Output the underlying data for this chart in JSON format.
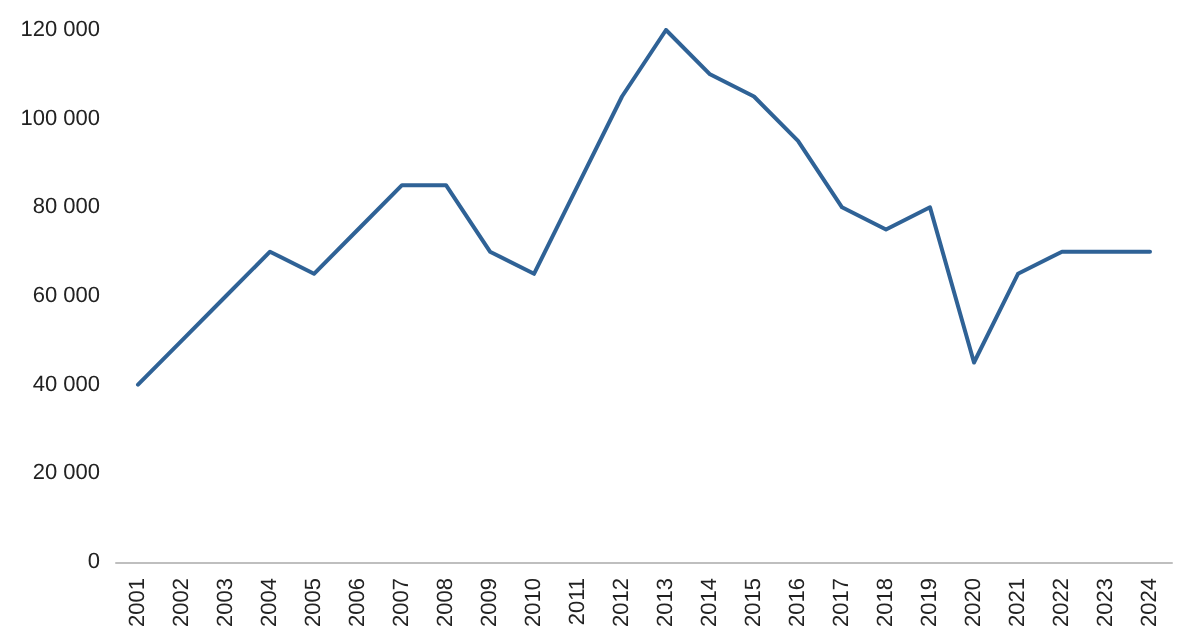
{
  "chart_data": {
    "type": "line",
    "categories": [
      "2001",
      "2002",
      "2003",
      "2004",
      "2005",
      "2006",
      "2007",
      "2008",
      "2009",
      "2010",
      "2011",
      "2012",
      "2013",
      "2014",
      "2015",
      "2016",
      "2017",
      "2018",
      "2019",
      "2020",
      "2021",
      "2022",
      "2023",
      "2024"
    ],
    "series": [
      {
        "color": "#2f6296",
        "values": [
          40000,
          50000,
          60000,
          70000,
          65000,
          75000,
          85000,
          85000,
          70000,
          65000,
          85000,
          105000,
          120000,
          110000,
          105000,
          95000,
          80000,
          75000,
          80000,
          45000,
          65000,
          70000,
          70000,
          70000
        ]
      }
    ],
    "ylim": [
      0,
      120000
    ],
    "yticks": [
      0,
      {
        "value": 20000,
        "label": "20 000"
      },
      {
        "value": 40000,
        "label": "40 000"
      },
      {
        "value": 60000,
        "label": "60 000"
      },
      {
        "value": 80000,
        "label": "80 000"
      },
      {
        "value": 100000,
        "label": "100 000"
      },
      {
        "value": 120000,
        "label": "120 000"
      }
    ],
    "grid": false,
    "marker": "none",
    "line_style": "solid"
  }
}
